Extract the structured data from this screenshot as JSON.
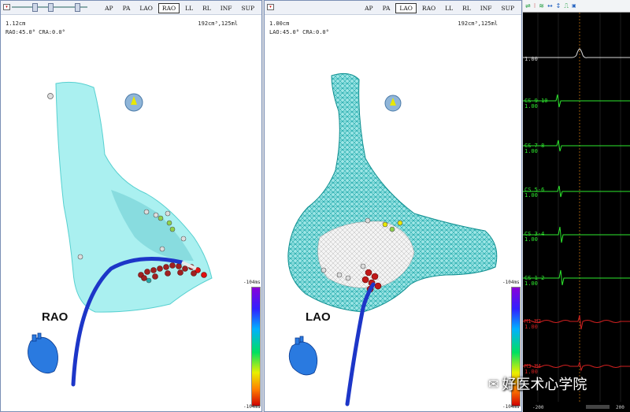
{
  "views": [
    "AP",
    "PA",
    "LAO",
    "RAO",
    "LL",
    "RL",
    "INF",
    "SUP"
  ],
  "left": {
    "active_view": "RAO",
    "scale": "1.12cm",
    "angles": "RAO:45.0° CRA:0.0°",
    "volume": "192cm³,125ml",
    "orientation": "RAO"
  },
  "right": {
    "active_view": "LAO",
    "scale": "1.00cm",
    "angles": "LAO:45.0° CRA:0.0°",
    "volume": "192cm³,125ml",
    "orientation": "LAO"
  },
  "colorbar": {
    "top": "-104ms",
    "bottom": "-104ms"
  },
  "ecg": {
    "tools": [
      "filter-icon",
      "marker-icon",
      "stack-icon",
      "width-icon",
      "height-icon",
      "pulse-icon",
      "ref-icon"
    ],
    "channels": [
      {
        "label": "I",
        "gain": "1.00",
        "color": "#d8d8d8"
      },
      {
        "label": "CS 9-10",
        "gain": "1.00",
        "color": "#2ee82e"
      },
      {
        "label": "CS 7-8",
        "gain": "1.00",
        "color": "#2ee82e"
      },
      {
        "label": "CS 5-6",
        "gain": "1.00",
        "color": "#2ee82e"
      },
      {
        "label": "CS 3-4",
        "gain": "1.00",
        "color": "#2ee82e"
      },
      {
        "label": "CS 1-2",
        "gain": "1.00",
        "color": "#2ee82e"
      },
      {
        "label": "M1-M2",
        "gain": "1.00",
        "color": "#d02020"
      },
      {
        "label": "M3-M4",
        "gain": "1.00",
        "color": "#d02020"
      }
    ],
    "x_left": "-200",
    "x_right": "200"
  },
  "watermark": "好医术心学院",
  "colors": {
    "mesh": "#27c4c4",
    "surface": "#7de8e8",
    "catheter": "#1d36c8",
    "points": "#b01818",
    "ecg_bg": "#000000"
  }
}
